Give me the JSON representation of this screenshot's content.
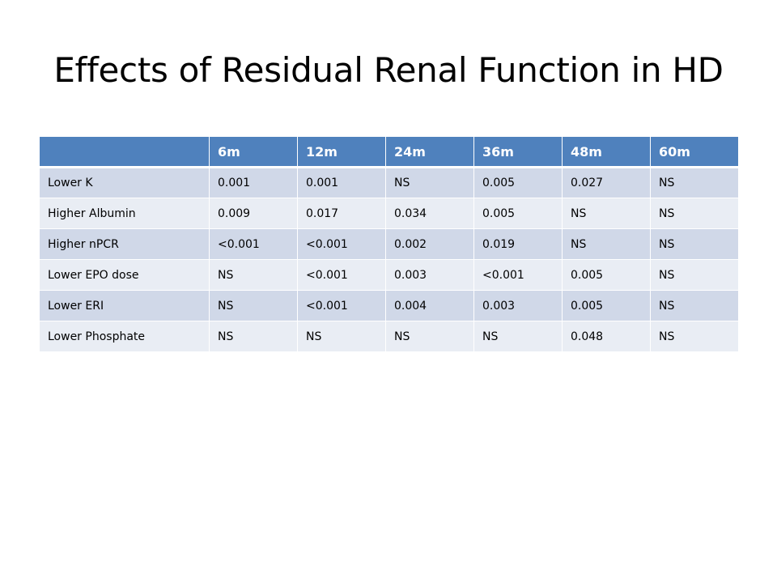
{
  "title": "Effects of Residual Renal Function in HD",
  "table": {
    "headers": [
      "",
      "6m",
      "12m",
      "24m",
      "36m",
      "48m",
      "60m"
    ],
    "rows": [
      [
        "Lower K",
        "0.001",
        "0.001",
        "NS",
        "0.005",
        "0.027",
        "NS"
      ],
      [
        "Higher Albumin",
        "0.009",
        "0.017",
        "0.034",
        "0.005",
        "NS",
        "NS"
      ],
      [
        "Higher nPCR",
        "<0.001",
        "<0.001",
        "0.002",
        "0.019",
        "NS",
        "NS"
      ],
      [
        "Lower EPO dose",
        "NS",
        "<0.001",
        "0.003",
        "<0.001",
        "0.005",
        "NS"
      ],
      [
        "Lower ERI",
        "NS",
        "<0.001",
        "0.004",
        "0.003",
        "0.005",
        "NS"
      ],
      [
        "Lower Phosphate",
        "NS",
        "NS",
        "NS",
        "NS",
        "0.048",
        "NS"
      ]
    ]
  },
  "colors": {
    "header_bg": "#4f81bd",
    "row_odd_bg": "#d0d8e8",
    "row_even_bg": "#e9edf4"
  }
}
